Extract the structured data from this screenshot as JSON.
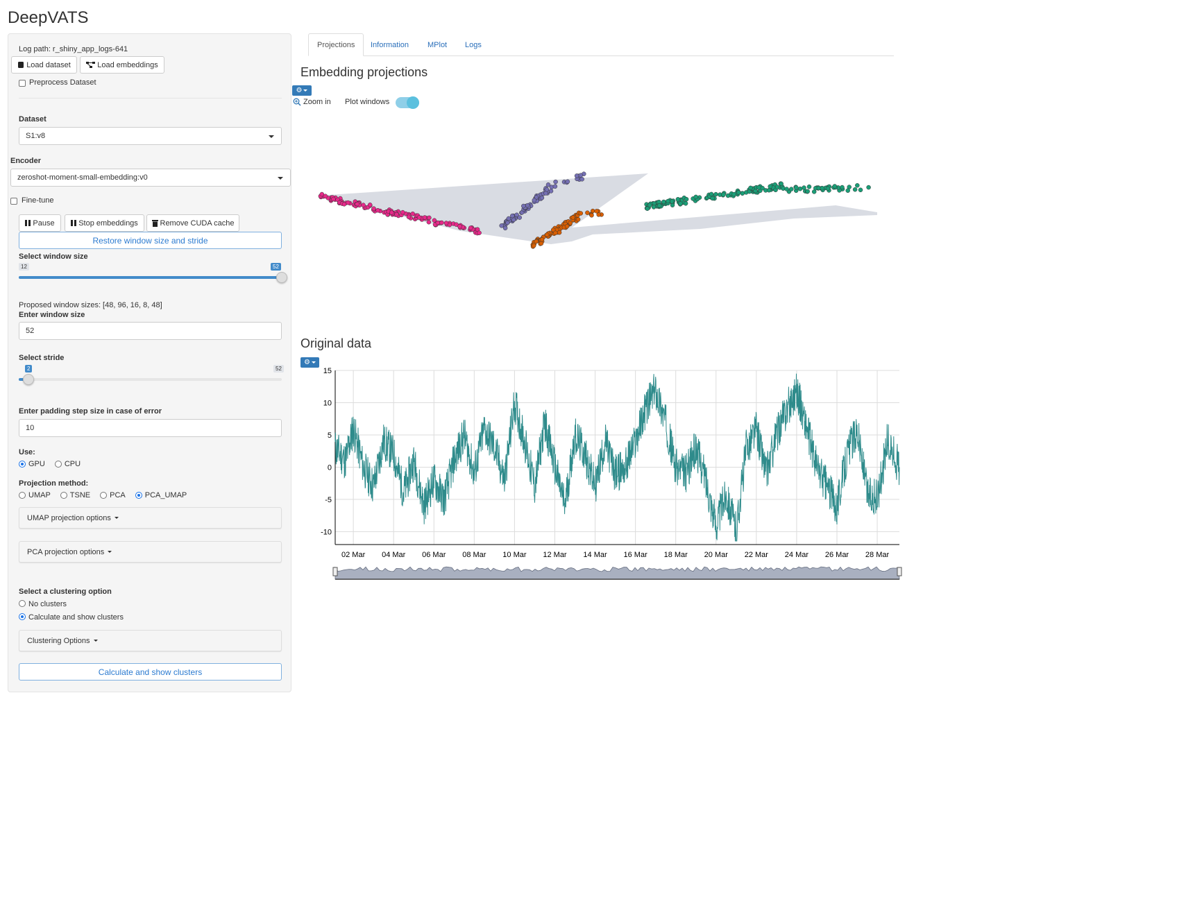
{
  "app": {
    "title": "DeepVATS"
  },
  "sidebar": {
    "log_path": "Log path: r_shiny_app_logs-641",
    "load_dataset": "Load dataset",
    "load_embeddings": "Load embeddings",
    "preprocess_label": "Preprocess Dataset",
    "dataset_label": "Dataset",
    "dataset_value": "S1:v8",
    "encoder_label": "Encoder",
    "encoder_value": "zeroshot-moment-small-embedding:v0",
    "finetune_label": "Fine-tune",
    "pause": "Pause",
    "stop_embeddings": "Stop embeddings",
    "remove_cuda": "Remove CUDA cache",
    "restore_window": "Restore window size and stride",
    "window_slider": {
      "label": "Select window size",
      "min": "12",
      "max": "52",
      "value": "52",
      "fraction": 1.0
    },
    "proposed_sizes": "Proposed window sizes: [48, 96, 16, 8, 48]",
    "enter_window_label": "Enter window size",
    "enter_window_value": "52",
    "stride_slider": {
      "label": "Select stride",
      "value": "2",
      "max": "52",
      "fraction": 0.0
    },
    "padding_label": "Enter padding step size in case of error",
    "padding_value": "10",
    "use_label": "Use:",
    "use_options": [
      "GPU",
      "CPU"
    ],
    "use_selected": "GPU",
    "projection_label": "Projection method:",
    "projection_options": [
      "UMAP",
      "TSNE",
      "PCA",
      "PCA_UMAP"
    ],
    "projection_selected": "PCA_UMAP",
    "umap_options": "UMAP projection options",
    "pca_options": "PCA projection options",
    "clustering_label": "Select a clustering option",
    "clustering_options": [
      "No clusters",
      "Calculate and show clusters"
    ],
    "clustering_selected": "Calculate and show clusters",
    "clustering_options_btn": "Clustering Options",
    "calc_clusters_btn": "Calculate and show clusters"
  },
  "tabs": [
    "Projections",
    "Information",
    "MPlot",
    "Logs"
  ],
  "active_tab": "Projections",
  "projections": {
    "title": "Embedding projections",
    "zoom_label": "Zoom in",
    "plot_windows_label": "Plot windows",
    "plot_windows_on": true,
    "cluster_colors": [
      "#e7298a",
      "#7570b3",
      "#d95f02",
      "#1b9e77"
    ]
  },
  "original": {
    "title": "Original data",
    "line_color": "#2e8b8b"
  },
  "chart_data": {
    "type": "line",
    "title": "Original data",
    "xlabel": "",
    "ylabel": "",
    "x_ticks": [
      "02 Mar",
      "04 Mar",
      "06 Mar",
      "08 Mar",
      "10 Mar",
      "12 Mar",
      "14 Mar",
      "16 Mar",
      "18 Mar",
      "20 Mar",
      "22 Mar",
      "24 Mar",
      "26 Mar",
      "28 Mar"
    ],
    "y_ticks": [
      15,
      10,
      5,
      0,
      -5,
      -10
    ],
    "xlim_days": [
      1.1,
      29.1
    ],
    "ylim": [
      -12,
      15
    ],
    "grid": true,
    "series": [
      {
        "x_day": [
          1.1,
          1.6,
          2.0,
          2.5,
          3.0,
          3.5,
          4.0,
          4.5,
          5.0,
          5.5,
          6.0,
          6.5,
          7.0,
          7.5,
          8.0,
          8.5,
          9.0,
          9.5,
          10.0,
          10.5,
          11.0,
          11.5,
          12.0,
          12.5,
          13.0,
          13.5,
          14.0,
          14.5,
          15.0,
          15.5,
          16.0,
          16.5,
          17.0,
          17.5,
          18.0,
          18.5,
          19.0,
          19.5,
          20.0,
          20.5,
          21.0,
          21.5,
          22.0,
          22.5,
          23.0,
          23.5,
          24.0,
          24.5,
          25.0,
          25.5,
          26.0,
          26.5,
          27.0,
          27.5,
          28.0,
          28.5,
          29.1
        ],
        "y": [
          3,
          1,
          6,
          0,
          -3,
          4,
          2,
          -4,
          1,
          -6,
          -2,
          -5,
          1,
          5,
          -1,
          6,
          3,
          -2,
          10,
          4,
          -3,
          7,
          0,
          -6,
          5,
          2,
          -3,
          4,
          -1,
          0,
          4,
          9,
          12,
          7,
          0,
          -1,
          3,
          -2,
          -9,
          -4,
          -10,
          3,
          6,
          -1,
          5,
          9,
          12,
          6,
          0,
          -3,
          -6,
          2,
          6,
          -4,
          -5,
          4,
          0
        ]
      }
    ]
  }
}
